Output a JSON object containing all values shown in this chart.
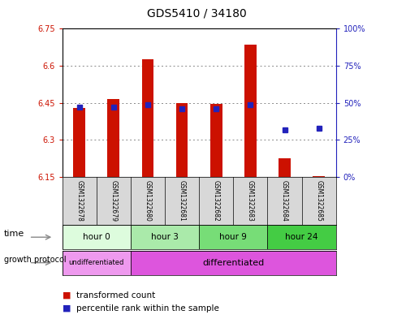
{
  "title": "GDS5410 / 34180",
  "samples": [
    "GSM1322678",
    "GSM1322679",
    "GSM1322680",
    "GSM1322681",
    "GSM1322682",
    "GSM1322683",
    "GSM1322684",
    "GSM1322685"
  ],
  "transformed_counts": [
    6.43,
    6.465,
    6.625,
    6.45,
    6.445,
    6.685,
    6.225,
    6.155
  ],
  "percentile_ranks": [
    47,
    47,
    49,
    46,
    46,
    49,
    32,
    33
  ],
  "baseline": 6.15,
  "ylim_left": [
    6.15,
    6.75
  ],
  "ylim_right": [
    0,
    100
  ],
  "yticks_left": [
    6.15,
    6.3,
    6.45,
    6.6,
    6.75
  ],
  "ytick_labels_left": [
    "6.15",
    "6.3",
    "6.45",
    "6.6",
    "6.75"
  ],
  "yticks_right": [
    0,
    25,
    50,
    75,
    100
  ],
  "ytick_labels_right": [
    "0%",
    "25%",
    "50%",
    "75%",
    "100%"
  ],
  "time_groups": [
    {
      "label": "hour 0",
      "start": 0,
      "end": 2,
      "color": "#ddfcdd"
    },
    {
      "label": "hour 3",
      "start": 2,
      "end": 4,
      "color": "#aaeaaa"
    },
    {
      "label": "hour 9",
      "start": 4,
      "end": 6,
      "color": "#77dd77"
    },
    {
      "label": "hour 24",
      "start": 6,
      "end": 8,
      "color": "#44cc44"
    }
  ],
  "protocol_groups": [
    {
      "label": "undifferentiated",
      "start": 0,
      "end": 2,
      "color": "#ee99ee"
    },
    {
      "label": "differentiated",
      "start": 2,
      "end": 8,
      "color": "#dd55dd"
    }
  ],
  "bar_color": "#cc1100",
  "dot_color": "#2222bb",
  "grid_color": "#888888",
  "bg_color": "#ffffff",
  "plot_bg": "#ffffff",
  "left_axis_color": "#cc1100",
  "right_axis_color": "#2222bb",
  "sample_bg": "#d8d8d8",
  "legend_red_label": "transformed count",
  "legend_blue_label": "percentile rank within the sample",
  "time_label": "time",
  "protocol_label": "growth protocol"
}
